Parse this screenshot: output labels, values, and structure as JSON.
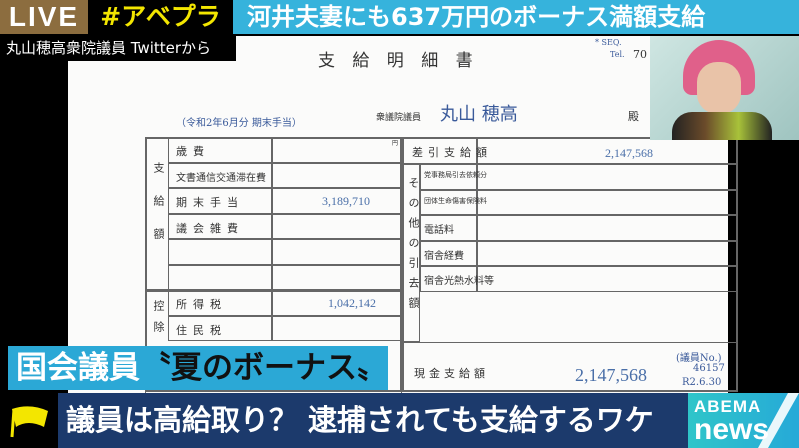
{
  "banner": {
    "live": "LIVE",
    "hashtag": "#アベプラ",
    "headline": "河井夫妻にも637万円のボーナス満額支給"
  },
  "source_caption": "丸山穂高衆院議員 Twitterから",
  "document": {
    "title": "支 給 明 細 書",
    "period": "（令和2年6月分 期末手当）",
    "recipient_prefix": "衆議院議員",
    "recipient_name": "丸山 穂高",
    "honorific": "殿",
    "seq_label": "* SEQ.",
    "tel_label": "Tel.",
    "tel_value": "70",
    "yen_mark": "円",
    "payment_group": "支給額",
    "payment_rows": [
      {
        "label": "歳費",
        "amount": ""
      },
      {
        "label": "文書通信交通滞在費",
        "amount": ""
      },
      {
        "label": "期末手当",
        "amount": "3,189,710"
      },
      {
        "label": "議会雑費",
        "amount": ""
      },
      {
        "label": "",
        "amount": ""
      },
      {
        "label": "",
        "amount": ""
      }
    ],
    "deduction_group": "控除",
    "deduction_rows": [
      {
        "label": "所得税",
        "amount": "1,042,142"
      },
      {
        "label": "住民税",
        "amount": ""
      }
    ],
    "net_label": "差引支給額",
    "net_amount": "2,147,568",
    "other_group": "その他の引去額",
    "other_rows": [
      {
        "label": "党事務局引去依頼分",
        "amount": ""
      },
      {
        "label": "団体生命傷害保険料",
        "amount": ""
      },
      {
        "label": "電話料",
        "amount": ""
      },
      {
        "label": "宿舎経費",
        "amount": ""
      },
      {
        "label": "宿舎光熱水料等",
        "amount": ""
      }
    ],
    "cash_label": "現金支給額",
    "cash_amount": "2,147,568",
    "member_no_label": "(議員No.)",
    "member_no": "46157",
    "date": "R2.6.30"
  },
  "subtitle": {
    "part1": "国会議員",
    "part2": "〝夏のボーナス〟"
  },
  "bottom_bar": {
    "text": "議員は高給取り？ 逮捕されても支給するワケ"
  },
  "logo": {
    "line1": "ABEMA",
    "line2": "news"
  },
  "colors": {
    "live_bg": "#8c6d3f",
    "hashtag": "#f3e600",
    "headline_bg": "#36b3dc",
    "subtitle_bg": "#2ba8d6",
    "bar_bg": "#1c3a6c",
    "flag": "#f3e600"
  }
}
